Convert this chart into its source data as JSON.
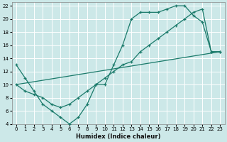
{
  "xlabel": "Humidex (Indice chaleur)",
  "background_color": "#cce8e8",
  "grid_color": "#ffffff",
  "line_color": "#1a7a6a",
  "xlim": [
    -0.5,
    23.5
  ],
  "ylim": [
    4,
    22.5
  ],
  "xticks": [
    0,
    1,
    2,
    3,
    4,
    5,
    6,
    7,
    8,
    9,
    10,
    11,
    12,
    13,
    14,
    15,
    16,
    17,
    18,
    19,
    20,
    21,
    22,
    23
  ],
  "yticks": [
    4,
    6,
    8,
    10,
    12,
    14,
    16,
    18,
    20,
    22
  ],
  "line1_x": [
    0,
    1,
    2,
    3,
    4,
    5,
    6,
    7,
    8,
    9,
    10,
    11,
    12,
    13,
    14,
    15,
    16,
    17,
    18,
    19,
    20,
    21,
    22,
    23
  ],
  "line1_y": [
    13,
    11,
    9,
    7,
    6,
    5,
    4,
    5,
    7,
    10,
    10,
    13,
    16,
    20,
    21,
    21,
    21,
    21.5,
    22,
    22,
    20.5,
    19.5,
    15,
    15
  ],
  "line2_x": [
    0,
    1,
    2,
    3,
    4,
    5,
    6,
    7,
    8,
    9,
    10,
    11,
    12,
    13,
    14,
    15,
    16,
    17,
    18,
    19,
    20,
    21,
    22,
    23
  ],
  "line2_y": [
    10,
    9,
    8.5,
    8,
    7,
    6.5,
    7,
    8,
    9,
    10,
    11,
    12,
    13,
    13.5,
    15,
    16,
    17,
    18,
    19,
    20,
    21,
    21.5,
    15,
    15
  ],
  "line3_x": [
    0,
    23
  ],
  "line3_y": [
    10,
    15
  ]
}
